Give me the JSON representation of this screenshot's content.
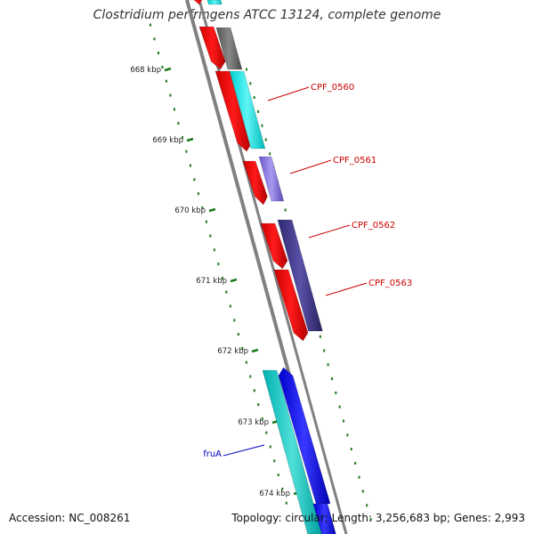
{
  "title": "Clostridium perfringens ATCC 13124, complete genome",
  "footer": {
    "accession": "Accession: NC_008261",
    "summary": "Topology: circular; Length: 3,256,683 bp; Genes: 2,993"
  },
  "colors": {
    "backbone": "#808080",
    "tick": "#1a7a1a",
    "tick_label": "#222222",
    "locus_label": "#cc0000",
    "gene_name_label": "#0000bb"
  },
  "ticks": [
    {
      "label": "668 kbp"
    },
    {
      "label": "669 kbp"
    },
    {
      "label": "670 kbp"
    },
    {
      "label": "671 kbp"
    },
    {
      "label": "672 kbp"
    },
    {
      "label": "673 kbp"
    },
    {
      "label": "674 kbp"
    }
  ],
  "labels": [
    {
      "text": "CPF_0560",
      "color": "#cc0000"
    },
    {
      "text": "CPF_0561",
      "color": "#cc0000"
    },
    {
      "text": "CPF_0562",
      "color": "#cc0000"
    },
    {
      "text": "CPF_0563",
      "color": "#cc0000"
    },
    {
      "text": "fruA",
      "color": "#0000bb"
    }
  ]
}
